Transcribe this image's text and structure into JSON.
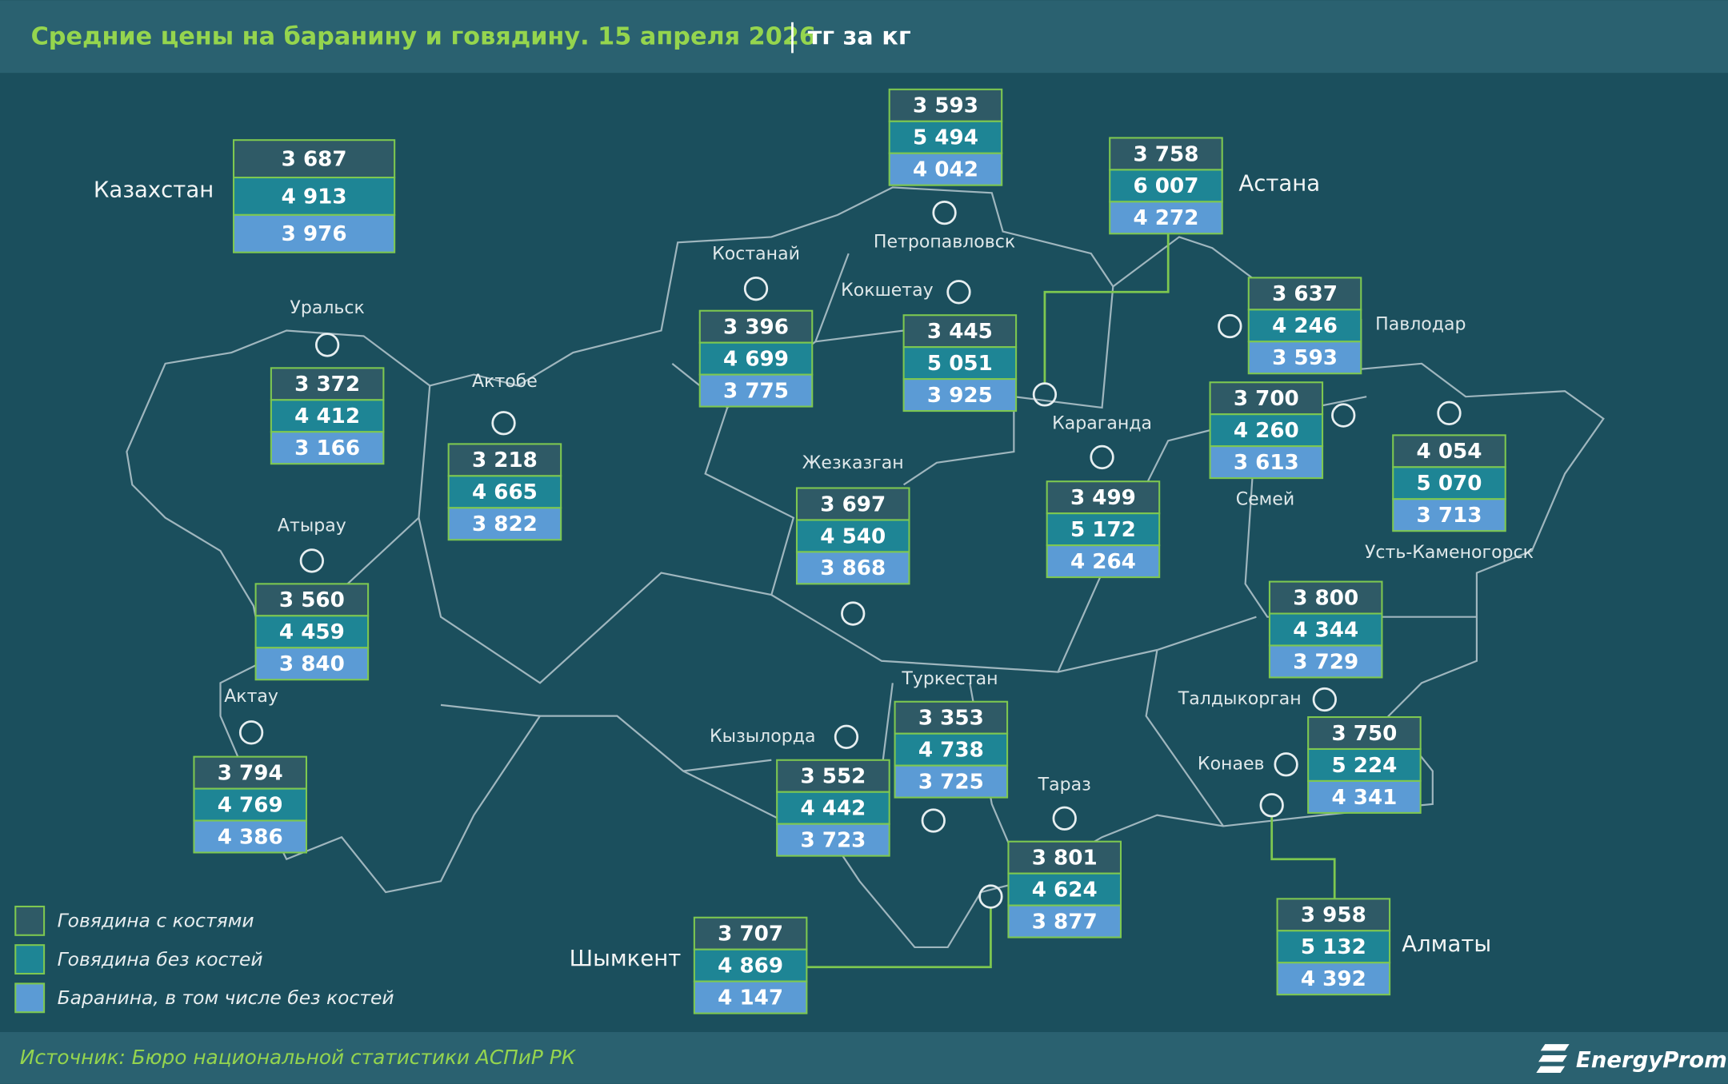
{
  "header": {
    "title": "Средние цены на баранину и говядину. 15 апреля 2026",
    "unit": "тг за кг"
  },
  "regions": [
    {
      "name": "Казахстан",
      "beef_bone": "3 687",
      "beef_boneless": "4 913",
      "lamb": "3 976"
    },
    {
      "name": "Петропавловск",
      "beef_bone": "3 593",
      "beef_boneless": "5 494",
      "lamb": "4 042"
    },
    {
      "name": "Астана",
      "beef_bone": "3 758",
      "beef_boneless": "6 007",
      "lamb": "4 272"
    },
    {
      "name": "Костанай",
      "beef_bone": "3 396",
      "beef_boneless": "4 699",
      "lamb": "3 775"
    },
    {
      "name": "Кокшетау",
      "beef_bone": "3 445",
      "beef_boneless": "5 051",
      "lamb": "3 925"
    },
    {
      "name": "Павлодар",
      "beef_bone": "3 637",
      "beef_boneless": "4 246",
      "lamb": "3 593"
    },
    {
      "name": "Уральск",
      "beef_bone": "3 372",
      "beef_boneless": "4 412",
      "lamb": "3 166"
    },
    {
      "name": "Актобе",
      "beef_bone": "3 218",
      "beef_boneless": "4 665",
      "lamb": "3 822"
    },
    {
      "name": "Караганда",
      "beef_bone": "3 499",
      "beef_boneless": "5 172",
      "lamb": "4 264"
    },
    {
      "name": "Семей",
      "beef_bone": "3 700",
      "beef_boneless": "4 260",
      "lamb": "3 613"
    },
    {
      "name": "Усть-Каменогорск",
      "beef_bone": "4 054",
      "beef_boneless": "5 070",
      "lamb": "3 713"
    },
    {
      "name": "Жезказган",
      "beef_bone": "3 697",
      "beef_boneless": "4 540",
      "lamb": "3 868"
    },
    {
      "name": "Атырау",
      "beef_bone": "3 560",
      "beef_boneless": "4 459",
      "lamb": "3 840"
    },
    {
      "name": "Актау",
      "beef_bone": "3 794",
      "beef_boneless": "4 769",
      "lamb": "4 386"
    },
    {
      "name": "Туркестан",
      "beef_bone": "3 353",
      "beef_boneless": "4 738",
      "lamb": "3 725"
    },
    {
      "name": "Кызылорда",
      "beef_bone": "3 552",
      "beef_boneless": "4 442",
      "lamb": "3 723"
    },
    {
      "name": "Тараз",
      "beef_bone": "3 801",
      "beef_boneless": "4 624",
      "lamb": "3 877"
    },
    {
      "name": "Талдыкорган",
      "beef_bone": "3 800",
      "beef_boneless": "4 344",
      "lamb": "3 729"
    },
    {
      "name": "Конаев",
      "beef_bone": "3 750",
      "beef_boneless": "5 224",
      "lamb": "4 341"
    },
    {
      "name": "Алматы",
      "beef_bone": "3 958",
      "beef_boneless": "5 132",
      "lamb": "4 392"
    },
    {
      "name": "Шымкент",
      "beef_bone": "3 707",
      "beef_boneless": "4 869",
      "lamb": "4 147"
    }
  ],
  "legend": [
    "Говядина с костями",
    "Говядина без костей",
    "Баранина, в том числе без костей"
  ],
  "footer": {
    "source": "Источник: Бюро национальной статистики АСПиР РК",
    "logo": "EnergyProm"
  }
}
